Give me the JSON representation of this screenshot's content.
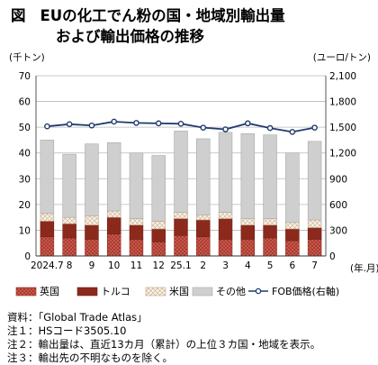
{
  "title": {
    "fig_label": "図",
    "line1": "EUの化工でん粉の国・地域別輸出量",
    "line2": "および輸出価格の推移"
  },
  "chart_data": {
    "type": "bar",
    "stacked": true,
    "categories": [
      "2024.7",
      "8",
      "9",
      "10",
      "11",
      "12",
      "25.1",
      "2",
      "3",
      "4",
      "5",
      "6",
      "7"
    ],
    "x_unit": "(年.月)",
    "y_left": {
      "unit": "(千トン)",
      "min": 0,
      "max": 70,
      "ticks": [
        "0",
        "10",
        "20",
        "30",
        "40",
        "50",
        "60",
        "70"
      ]
    },
    "y_right": {
      "unit": "(ユーロ/トン)",
      "min": 0,
      "max": 2100,
      "ticks": [
        "0",
        "300",
        "600",
        "900",
        "1,200",
        "1,500",
        "1,800",
        "2,100"
      ]
    },
    "grid": true,
    "legend_position": "bottom",
    "series": [
      {
        "name": "英国",
        "axis": "left",
        "color": "#b03a2e",
        "pattern": "dots",
        "values": [
          7.5,
          7.0,
          6.5,
          8.5,
          6.5,
          5.5,
          8.0,
          7.5,
          6.5,
          6.5,
          7.0,
          6.0,
          6.5
        ]
      },
      {
        "name": "トルコ",
        "axis": "left",
        "color": "#8b2a1c",
        "values": [
          6.0,
          5.5,
          5.5,
          6.5,
          5.5,
          5.0,
          6.5,
          6.5,
          8.0,
          5.5,
          5.0,
          4.5,
          4.5
        ]
      },
      {
        "name": "米国",
        "axis": "left",
        "color": "#f6efe2",
        "pattern": "cross",
        "values": [
          3.0,
          2.5,
          3.5,
          2.5,
          2.5,
          3.0,
          2.5,
          2.0,
          2.5,
          2.5,
          2.5,
          2.5,
          3.0
        ]
      },
      {
        "name": "その他",
        "axis": "left",
        "color": "#cfcfcf",
        "values": [
          28.5,
          24.5,
          28.0,
          26.5,
          25.5,
          25.5,
          31.5,
          29.5,
          31.0,
          33.0,
          32.5,
          27.0,
          30.5
        ]
      },
      {
        "name": "FOB価格(右軸)",
        "axis": "right",
        "type": "line",
        "color": "#1f3b6e",
        "values": [
          1510,
          1535,
          1520,
          1565,
          1550,
          1545,
          1540,
          1495,
          1475,
          1545,
          1490,
          1445,
          1495
        ]
      }
    ]
  },
  "notes": [
    "資料：「Global Trade Atlas」",
    "注１：HSコード3505.10",
    "注２：輸出量は、直近13カ月（累計）の上位３カ国・地域を表示。",
    "注３：輸出先の不明なものを除く。"
  ]
}
